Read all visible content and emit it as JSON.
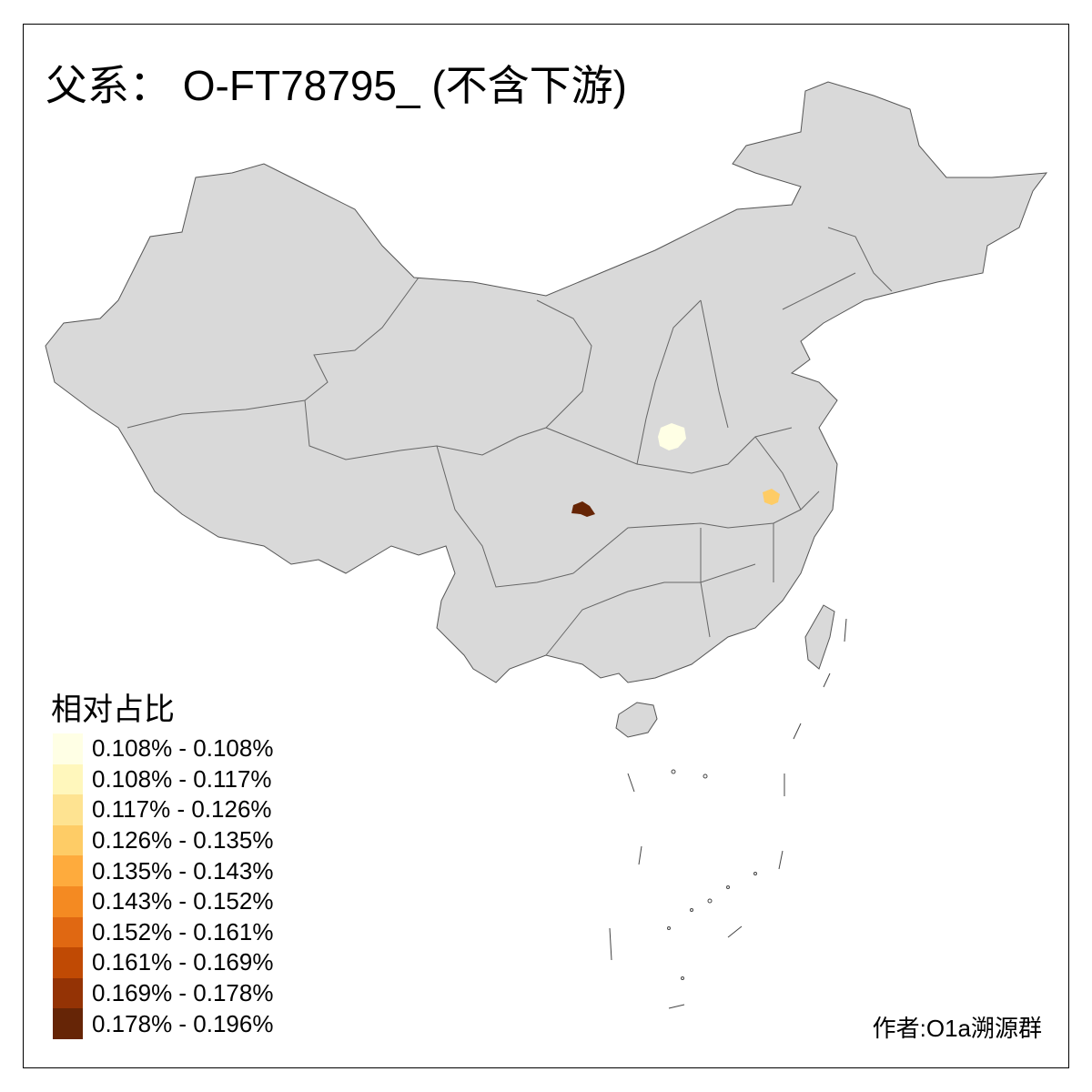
{
  "title": "父系： O-FT78795_ (不含下游)",
  "legend": {
    "title": "相对占比",
    "items": [
      {
        "label": "0.108% - 0.108%",
        "color": "#FFFFE5"
      },
      {
        "label": "0.108% - 0.117%",
        "color": "#FFF7BC"
      },
      {
        "label": "0.117% - 0.126%",
        "color": "#FEE391"
      },
      {
        "label": "0.126% - 0.135%",
        "color": "#FECC66"
      },
      {
        "label": "0.135% - 0.143%",
        "color": "#FEAB3D"
      },
      {
        "label": "0.143% - 0.152%",
        "color": "#F48A22"
      },
      {
        "label": "0.152% - 0.161%",
        "color": "#E06812"
      },
      {
        "label": "0.161% - 0.169%",
        "color": "#C04A04"
      },
      {
        "label": "0.169% - 0.178%",
        "color": "#943305"
      },
      {
        "label": "0.178% - 0.196%",
        "color": "#662506"
      }
    ]
  },
  "map": {
    "base_color": "#D9D9D9",
    "border_color": "#666666",
    "highlighted_regions": [
      {
        "bin": "0.108% - 0.108%",
        "color": "#FFFFE5"
      },
      {
        "bin": "0.126% - 0.135%",
        "color": "#FECC66"
      },
      {
        "bin": "0.178% - 0.196%",
        "color": "#662506"
      }
    ]
  },
  "credit": "作者:O1a溯源群"
}
